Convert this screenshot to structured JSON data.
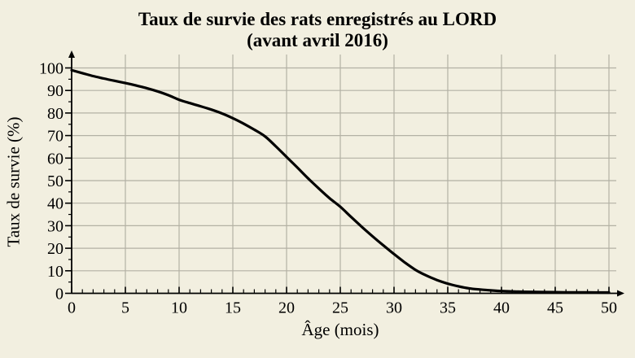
{
  "title": {
    "line1": "Taux de survie des rats enregistrés au LORD",
    "line2": "(avant avril 2016)"
  },
  "chart_data": {
    "type": "line",
    "title": "Taux de survie des rats enregistrés au LORD (avant avril 2016)",
    "xlabel": "Âge (mois)",
    "ylabel": "Taux de survie (%)",
    "xlim": [
      0,
      51.2
    ],
    "ylim": [
      0,
      100
    ],
    "x_ticks": [
      0,
      5,
      10,
      15,
      20,
      25,
      30,
      35,
      40,
      45,
      50
    ],
    "y_ticks": [
      0,
      10,
      20,
      30,
      40,
      50,
      60,
      70,
      80,
      90,
      100
    ],
    "x_minor_step": 1,
    "y_minor_step": 5,
    "grid": true,
    "legend": "none",
    "series": [
      {
        "name": "taux-de-survie",
        "points": [
          [
            0,
            99
          ],
          [
            1,
            97.7
          ],
          [
            2,
            96.4
          ],
          [
            3,
            95.3
          ],
          [
            4,
            94.3
          ],
          [
            5,
            93.3
          ],
          [
            6,
            92.2
          ],
          [
            7,
            91.0
          ],
          [
            8,
            89.6
          ],
          [
            9,
            87.9
          ],
          [
            10,
            85.9
          ],
          [
            11,
            84.4
          ],
          [
            12,
            83.0
          ],
          [
            13,
            81.5
          ],
          [
            14,
            79.8
          ],
          [
            15,
            77.7
          ],
          [
            16,
            75.3
          ],
          [
            17,
            72.6
          ],
          [
            18,
            69.6
          ],
          [
            19,
            65.2
          ],
          [
            20,
            60.5
          ],
          [
            21,
            55.8
          ],
          [
            22,
            51.0
          ],
          [
            23,
            46.5
          ],
          [
            24,
            42.2
          ],
          [
            25,
            38.4
          ],
          [
            26,
            33.9
          ],
          [
            27,
            29.5
          ],
          [
            28,
            25.3
          ],
          [
            29,
            21.3
          ],
          [
            30,
            17.4
          ],
          [
            31,
            13.7
          ],
          [
            32,
            10.4
          ],
          [
            33,
            7.9
          ],
          [
            34,
            5.9
          ],
          [
            35,
            4.3
          ],
          [
            36,
            3.1
          ],
          [
            37,
            2.2
          ],
          [
            38,
            1.7
          ],
          [
            39,
            1.3
          ],
          [
            40,
            1.0
          ],
          [
            42,
            0.7
          ],
          [
            44,
            0.55
          ],
          [
            46,
            0.45
          ],
          [
            48,
            0.4
          ],
          [
            50,
            0.35
          ]
        ]
      }
    ],
    "colors": {
      "background": "#f2efe0",
      "grid": "#b3b1a4",
      "ink": "#000000"
    }
  }
}
